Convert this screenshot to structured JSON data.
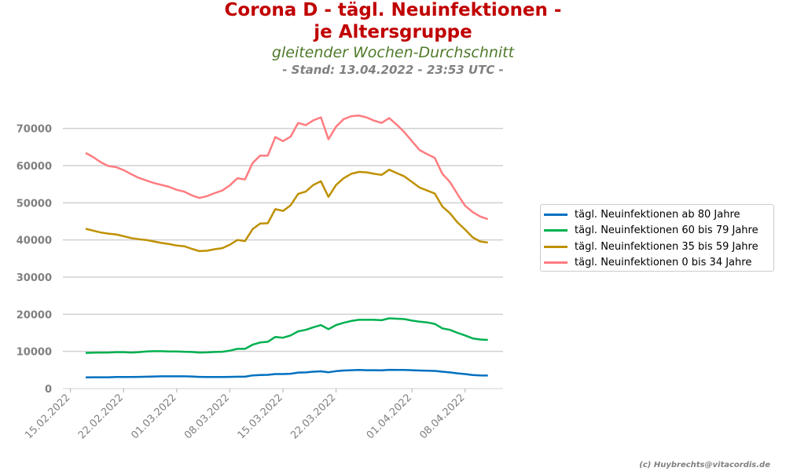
{
  "title_line1": "Corona D - tägl. Neuinfektionen -",
  "title_line2": "je Altersgruppe",
  "subtitle": "gleitender Wochen-Durchschnitt",
  "stand": "- Stand: 13.04.2022 - 23:53 UTC -",
  "credit": "(c) Huybrechts@vitacordis.de",
  "chart_data": {
    "type": "line",
    "x_start": "17.02.2022",
    "x_ticks": [
      "15.02.2022",
      "22.02.2022",
      "01.03.2022",
      "08.03.2022",
      "15.03.2022",
      "22.03.2022",
      "01.04.2022",
      "08.04.2022"
    ],
    "xlim": [
      "14.02.2022",
      "13.04.2022"
    ],
    "ylim": [
      0,
      75000
    ],
    "y_ticks": [
      0,
      10000,
      20000,
      30000,
      40000,
      50000,
      60000,
      70000
    ],
    "grid": true,
    "legend_position": "right",
    "series": [
      {
        "name": "tägl. Neuinfektionen ab 80 Jahre",
        "color": "#0070c0",
        "values": [
          3000,
          3050,
          3050,
          3050,
          3100,
          3100,
          3100,
          3150,
          3200,
          3250,
          3300,
          3300,
          3300,
          3300,
          3250,
          3150,
          3100,
          3100,
          3100,
          3150,
          3200,
          3200,
          3550,
          3650,
          3700,
          3900,
          3900,
          4000,
          4300,
          4350,
          4550,
          4650,
          4400,
          4700,
          4850,
          4950,
          5000,
          4950,
          4950,
          4900,
          5050,
          5000,
          5000,
          4950,
          4850,
          4800,
          4750,
          4550,
          4350,
          4100,
          3900,
          3650,
          3550,
          3500
        ]
      },
      {
        "name": "tägl. Neuinfektionen 60 bis 79 Jahre",
        "color": "#00b050",
        "values": [
          9600,
          9650,
          9700,
          9700,
          9800,
          9800,
          9700,
          9800,
          10000,
          10050,
          10050,
          10000,
          10000,
          9900,
          9850,
          9700,
          9750,
          9850,
          9900,
          10200,
          10700,
          10700,
          11800,
          12400,
          12600,
          13900,
          13700,
          14300,
          15400,
          15800,
          16500,
          17100,
          16000,
          17100,
          17700,
          18200,
          18500,
          18500,
          18500,
          18400,
          18900,
          18800,
          18700,
          18300,
          18000,
          17800,
          17400,
          16200,
          15800,
          15000,
          14300,
          13500,
          13200,
          13100
        ]
      },
      {
        "name": "tägl. Neuinfektionen 35 bis 59 Jahre",
        "color": "#bf9000",
        "values": [
          43000,
          42500,
          42000,
          41700,
          41500,
          41000,
          40500,
          40200,
          40000,
          39600,
          39200,
          38900,
          38500,
          38300,
          37600,
          37000,
          37100,
          37500,
          37800,
          38700,
          40000,
          39700,
          42900,
          44400,
          44500,
          48300,
          47800,
          49300,
          52400,
          53000,
          54800,
          55800,
          51600,
          54800,
          56600,
          57800,
          58300,
          58200,
          57800,
          57500,
          58900,
          58000,
          57100,
          55600,
          54100,
          53300,
          52500,
          49000,
          47200,
          44700,
          42800,
          40700,
          39600,
          39300
        ]
      },
      {
        "name": "tägl. Neuinfektionen 0 bis 34 Jahre",
        "color": "#ff7c80",
        "values": [
          63400,
          62300,
          60900,
          59900,
          59600,
          58800,
          57700,
          56700,
          56000,
          55300,
          54800,
          54300,
          53500,
          53000,
          52000,
          51300,
          51800,
          52600,
          53300,
          54700,
          56600,
          56300,
          60700,
          62700,
          62700,
          67700,
          66600,
          67800,
          71500,
          70900,
          72200,
          73000,
          67100,
          70500,
          72500,
          73300,
          73500,
          73000,
          72100,
          71500,
          72800,
          71000,
          69000,
          66600,
          64200,
          63100,
          62100,
          57800,
          55600,
          52300,
          49200,
          47500,
          46300,
          45600
        ]
      }
    ]
  }
}
